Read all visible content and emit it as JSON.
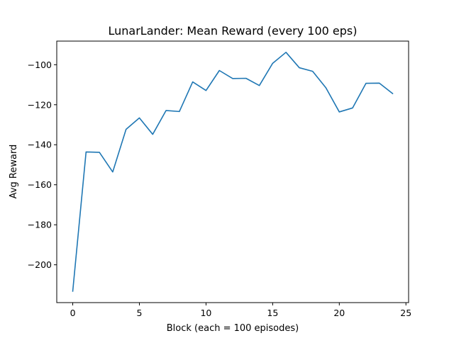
{
  "chart_data": {
    "type": "line",
    "title": "LunarLander: Mean Reward (every 100 eps)",
    "xlabel": "Block (each = 100 episodes)",
    "ylabel": "Avg Reward",
    "xlim": [
      -1.2,
      25.2
    ],
    "ylim": [
      -218.9,
      -88.2
    ],
    "xticks": [
      0,
      5,
      10,
      15,
      20,
      25
    ],
    "yticks": [
      -200,
      -180,
      -160,
      -140,
      -120,
      -100
    ],
    "grid": false,
    "series": [
      {
        "color": "#1f77b4",
        "x": [
          0,
          1,
          2,
          3,
          4,
          5,
          6,
          7,
          8,
          9,
          10,
          11,
          12,
          13,
          14,
          15,
          16,
          17,
          18,
          19,
          20,
          21,
          22,
          23,
          24
        ],
        "y": [
          -213.2,
          -143.6,
          -143.8,
          -153.6,
          -132.3,
          -126.6,
          -134.8,
          -122.9,
          -123.4,
          -108.6,
          -112.9,
          -102.9,
          -106.9,
          -106.8,
          -110.4,
          -99.3,
          -93.8,
          -101.5,
          -103.3,
          -111.6,
          -123.6,
          -121.6,
          -109.3,
          -109.2,
          -114.4
        ]
      }
    ]
  }
}
